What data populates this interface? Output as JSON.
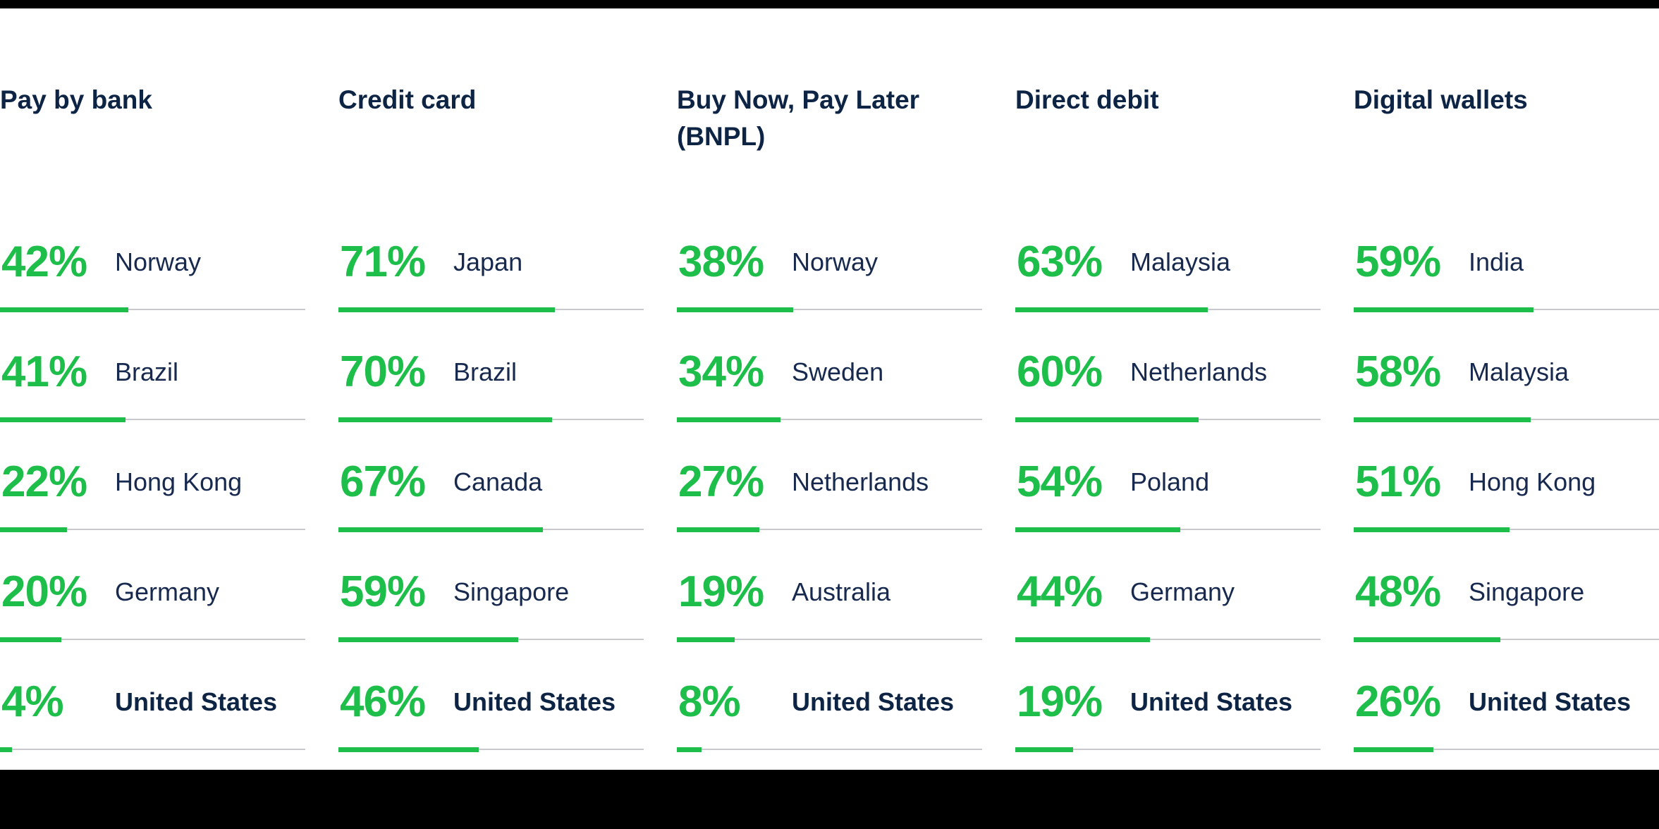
{
  "colors": {
    "accent_green": "#1EBE4B",
    "header_navy": "#0D2444",
    "label_navy": "#17294E",
    "track_gray": "#C9C9CD",
    "background": "#FFFFFF",
    "edge_bar_black": "#000000"
  },
  "chart_data": {
    "type": "bar",
    "orientation": "horizontal",
    "unit": "%",
    "value_range": [
      0,
      100
    ],
    "grid": false,
    "legend": false,
    "columns": [
      {
        "header": "Pay by bank",
        "rows": [
          {
            "value": 42,
            "display": "42%",
            "label": "Norway",
            "emphasis": false
          },
          {
            "value": 41,
            "display": "41%",
            "label": "Brazil",
            "emphasis": false
          },
          {
            "value": 22,
            "display": "22%",
            "label": "Hong Kong",
            "emphasis": false
          },
          {
            "value": 20,
            "display": "20%",
            "label": "Germany",
            "emphasis": false
          },
          {
            "value": 4,
            "display": "4%",
            "label": "United States",
            "emphasis": true
          }
        ]
      },
      {
        "header": "Credit card",
        "rows": [
          {
            "value": 71,
            "display": "71%",
            "label": "Japan",
            "emphasis": false
          },
          {
            "value": 70,
            "display": "70%",
            "label": "Brazil",
            "emphasis": false
          },
          {
            "value": 67,
            "display": "67%",
            "label": "Canada",
            "emphasis": false
          },
          {
            "value": 59,
            "display": "59%",
            "label": "Singapore",
            "emphasis": false
          },
          {
            "value": 46,
            "display": "46%",
            "label": "United States",
            "emphasis": true
          }
        ]
      },
      {
        "header": "Buy Now, Pay Later (BNPL)",
        "rows": [
          {
            "value": 38,
            "display": "38%",
            "label": "Norway",
            "emphasis": false
          },
          {
            "value": 34,
            "display": "34%",
            "label": "Sweden",
            "emphasis": false
          },
          {
            "value": 27,
            "display": "27%",
            "label": "Netherlands",
            "emphasis": false
          },
          {
            "value": 19,
            "display": "19%",
            "label": "Australia",
            "emphasis": false
          },
          {
            "value": 8,
            "display": "8%",
            "label": "United States",
            "emphasis": true
          }
        ]
      },
      {
        "header": "Direct debit",
        "rows": [
          {
            "value": 63,
            "display": "63%",
            "label": "Malaysia",
            "emphasis": false
          },
          {
            "value": 60,
            "display": "60%",
            "label": "Netherlands",
            "emphasis": false
          },
          {
            "value": 54,
            "display": "54%",
            "label": "Poland",
            "emphasis": false
          },
          {
            "value": 44,
            "display": "44%",
            "label": "Germany",
            "emphasis": false
          },
          {
            "value": 19,
            "display": "19%",
            "label": "United States",
            "emphasis": true
          }
        ]
      },
      {
        "header": "Digital wallets",
        "rows": [
          {
            "value": 59,
            "display": "59%",
            "label": "India",
            "emphasis": false
          },
          {
            "value": 58,
            "display": "58%",
            "label": "Malaysia",
            "emphasis": false
          },
          {
            "value": 51,
            "display": "51%",
            "label": "Hong Kong",
            "emphasis": false
          },
          {
            "value": 48,
            "display": "48%",
            "label": "Singapore",
            "emphasis": false
          },
          {
            "value": 26,
            "display": "26%",
            "label": "United States",
            "emphasis": true
          }
        ]
      }
    ]
  }
}
